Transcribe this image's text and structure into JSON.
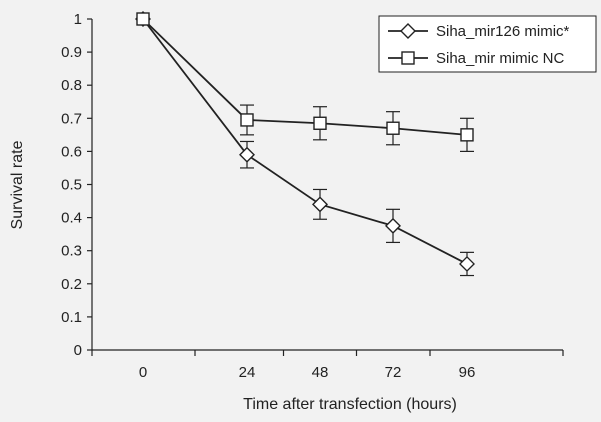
{
  "chart_data": {
    "type": "line",
    "xlabel": "Time after transfection (hours)",
    "ylabel": "Survival rate",
    "x": [
      0,
      24,
      48,
      72,
      96
    ],
    "x_tick_labels": [
      "0",
      "24",
      "48",
      "72",
      "96"
    ],
    "ylim": [
      0,
      1
    ],
    "y_ticks": [
      0,
      0.1,
      0.2,
      0.3,
      0.4,
      0.5,
      0.6,
      0.7,
      0.8,
      0.9,
      1
    ],
    "y_tick_labels": [
      "0",
      "0.1",
      "0.2",
      "0.3",
      "0.4",
      "0.5",
      "0.6",
      "0.7",
      "0.8",
      "0.9",
      "1"
    ],
    "grid": false,
    "legend_position": "top-right",
    "series": [
      {
        "name": "Siha_mir126 mimic*",
        "marker": "diamond",
        "values": [
          1.0,
          0.59,
          0.44,
          0.375,
          0.26
        ],
        "errors": [
          0.0,
          0.04,
          0.045,
          0.05,
          0.035
        ]
      },
      {
        "name": "Siha_mir mimic NC",
        "marker": "square",
        "values": [
          1.0,
          0.695,
          0.685,
          0.67,
          0.65
        ],
        "errors": [
          0.0,
          0.045,
          0.05,
          0.05,
          0.05
        ]
      }
    ],
    "colors": {
      "line": "#222222",
      "marker_fill": "#ffffff",
      "background": "#f2f2f2"
    }
  }
}
